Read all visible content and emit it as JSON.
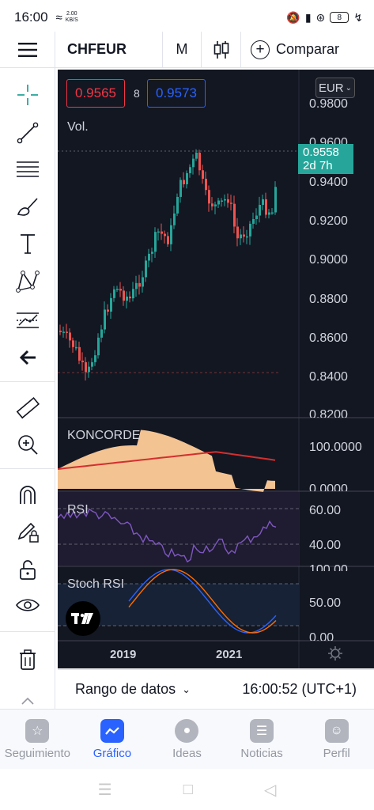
{
  "status_bar": {
    "time": "16:00",
    "net_speed_value": "2.00",
    "net_speed_unit": "KB/S",
    "battery": "8"
  },
  "toolbar": {
    "symbol": "CHFEUR",
    "timeframe": "M",
    "compare_label": "Comparar"
  },
  "chart": {
    "bid_price": "0.9565",
    "spread": "8",
    "ask_price": "0.9573",
    "volume_label": "Vol.",
    "currency": "EUR",
    "current_price": "0.9558",
    "countdown": "2d 7h",
    "y_ticks": [
      "0.9800",
      "0.9600",
      "0.9400",
      "0.9200",
      "0.9000",
      "0.8800",
      "0.8600",
      "0.8400",
      "0.8200"
    ],
    "x_ticks": [
      "2019",
      "2021"
    ],
    "colors": {
      "up": "#26a69a",
      "down": "#ef5350",
      "background": "#131722",
      "rsi": "#7e57c2",
      "koncorde": "#ffcc99"
    }
  },
  "panes": {
    "koncorde": {
      "title": "KONCORDE",
      "ticks": [
        "100.0000",
        "0.0000"
      ]
    },
    "rsi": {
      "title": "RSI",
      "ticks": [
        "60.00",
        "40.00"
      ]
    },
    "stoch": {
      "title": "Stoch RSI",
      "ticks": [
        "100.00",
        "50.00",
        "0.00"
      ]
    }
  },
  "range_bar": {
    "label": "Rango de datos",
    "time": "16:00:52 (UTC+1)"
  },
  "bottom_nav": [
    {
      "label": "Seguimiento",
      "icon": "star-icon"
    },
    {
      "label": "Gráfico",
      "icon": "chart-icon"
    },
    {
      "label": "Ideas",
      "icon": "lightbulb-icon"
    },
    {
      "label": "Noticias",
      "icon": "news-icon"
    },
    {
      "label": "Perfil",
      "icon": "profile-icon"
    }
  ]
}
